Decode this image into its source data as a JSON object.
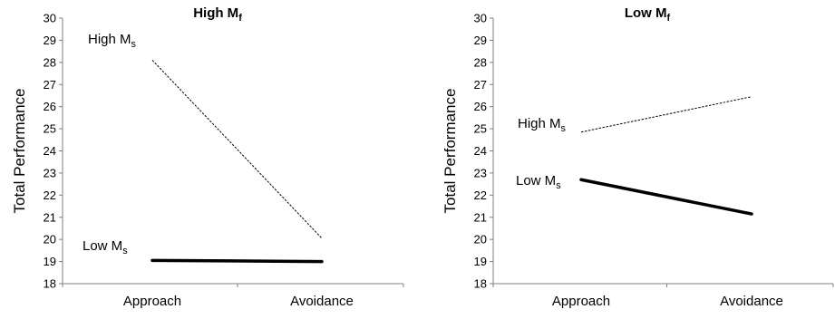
{
  "chart_data": [
    {
      "type": "line",
      "title": "High M",
      "title_sub": "f",
      "ylabel": "Total Performance",
      "xlabel": "",
      "categories": [
        "Approach",
        "Avoidance"
      ],
      "ylim": [
        18,
        30
      ],
      "yticks": [
        18,
        19,
        20,
        21,
        22,
        23,
        24,
        25,
        26,
        27,
        28,
        29,
        30
      ],
      "grid": false,
      "series": [
        {
          "name": "High M",
          "name_sub": "s",
          "values": [
            28.1,
            20.05
          ],
          "style": "dashed"
        },
        {
          "name": "Low M",
          "name_sub": "s",
          "values": [
            19.05,
            19.0
          ],
          "style": "thick"
        }
      ]
    },
    {
      "type": "line",
      "title": "Low M",
      "title_sub": "f",
      "ylabel": "Total Performance",
      "xlabel": "",
      "categories": [
        "Approach",
        "Avoidance"
      ],
      "ylim": [
        18,
        30
      ],
      "yticks": [
        18,
        19,
        20,
        21,
        22,
        23,
        24,
        25,
        26,
        27,
        28,
        29,
        30
      ],
      "grid": false,
      "series": [
        {
          "name": "High M",
          "name_sub": "s",
          "values": [
            24.85,
            26.45
          ],
          "style": "dashed"
        },
        {
          "name": "Low M",
          "name_sub": "s",
          "values": [
            22.7,
            21.15
          ],
          "style": "thick"
        }
      ]
    }
  ]
}
